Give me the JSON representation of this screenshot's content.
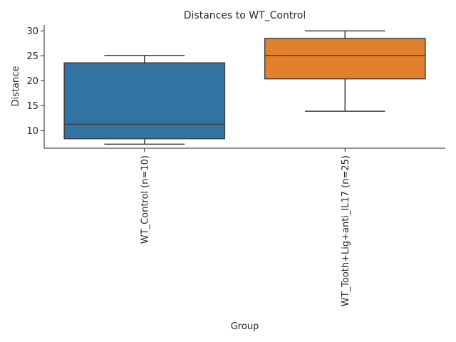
{
  "chart_data": {
    "type": "box",
    "title": "Distances to WT_Control",
    "xlabel": "Group",
    "ylabel": "Distance",
    "ylim": [
      6.5,
      31.2
    ],
    "yticks": [
      10,
      15,
      20,
      25,
      30
    ],
    "grid": false,
    "categories": [
      "WT_Control (n=10)",
      "WT_Tooth+Lig+anti_IL17 (n=25)"
    ],
    "boxes": [
      {
        "whisker_low": 7.3,
        "q1": 8.4,
        "median": 11.3,
        "q3": 23.6,
        "whisker_high": 25.1,
        "color": "#3274a1"
      },
      {
        "whisker_low": 13.9,
        "q1": 20.4,
        "median": 25.1,
        "q3": 28.5,
        "whisker_high": 30.0,
        "color": "#e1812c"
      }
    ]
  },
  "colors": {
    "line": "#3f3f3f",
    "axis": "#262626"
  }
}
